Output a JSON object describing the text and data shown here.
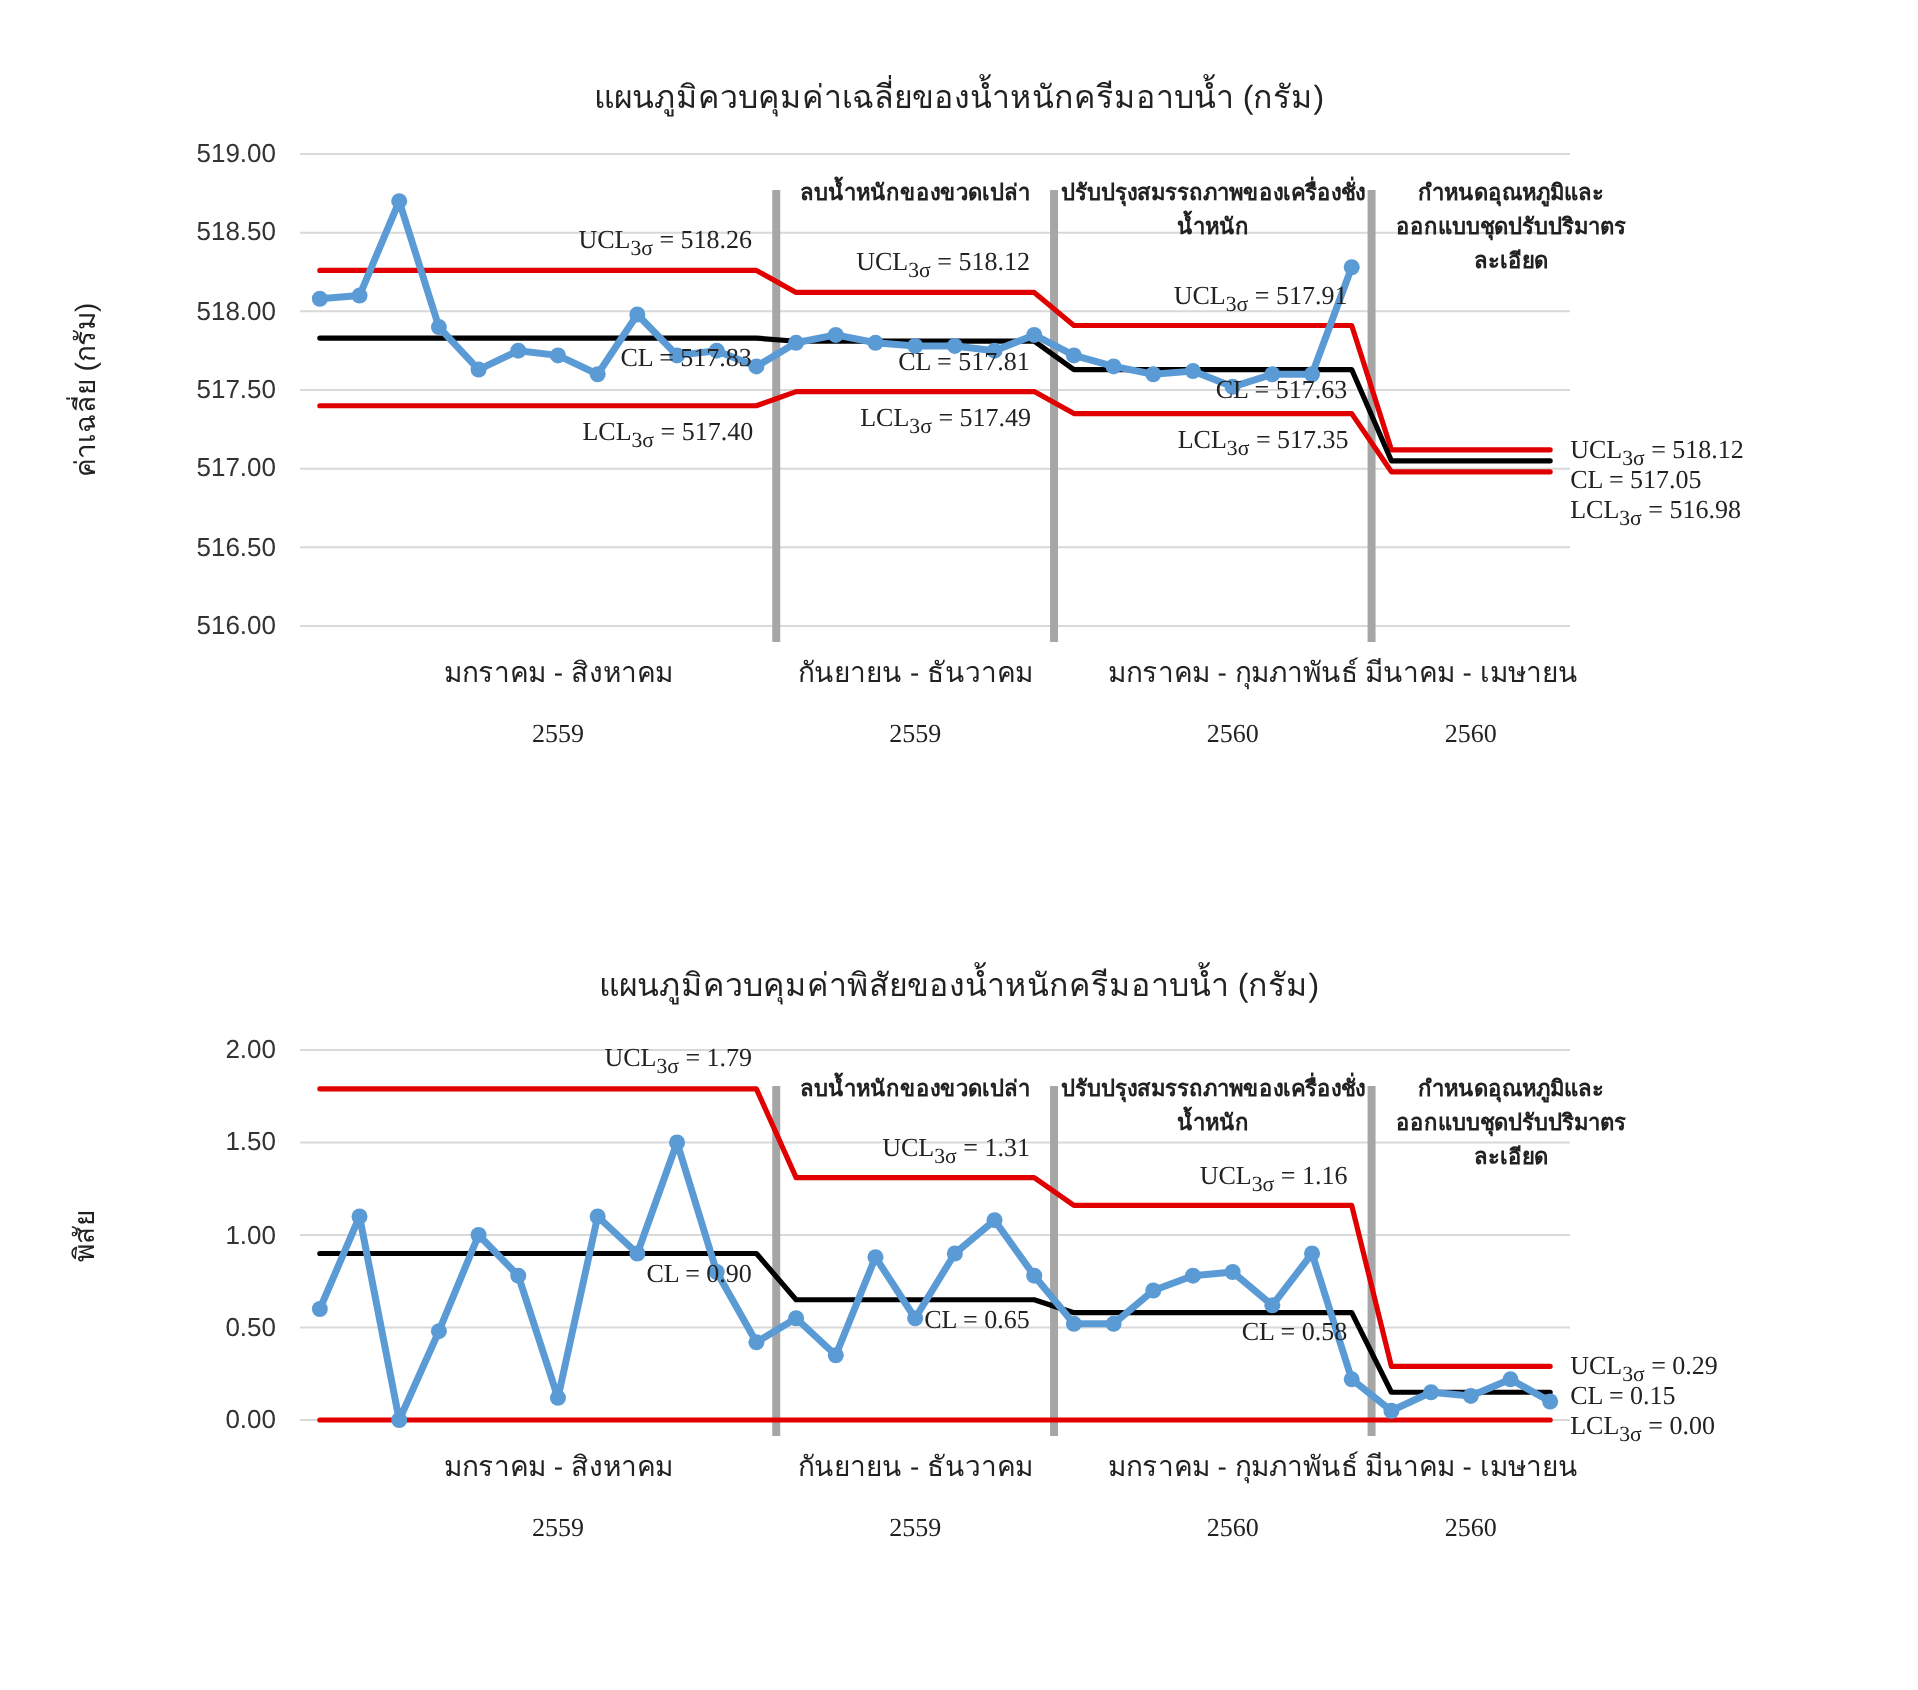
{
  "chart_data": [
    {
      "type": "line",
      "title": "แผนภูมิควบคุมค่าเฉลี่ยของน้ำหนักครีมอาบน้ำ (กรัม)",
      "ylabel": "ค่าเฉลี่ย (กรัม)",
      "categories": [
        null,
        null,
        null,
        null,
        null,
        null,
        "มกราคม - สิงหาคม 2559",
        null,
        null,
        null,
        null,
        null,
        null,
        null,
        null,
        "กันยายน - ธันวาคม 2559",
        null,
        null,
        null,
        null,
        null,
        null,
        null,
        "มกราคม - กุมภาพันธ์ 2560",
        null,
        null,
        null,
        null,
        null,
        "มีนาคม - เมษายน 2560",
        null,
        null
      ],
      "series": [
        {
          "color": "#5b9bd5",
          "marker": "circle",
          "values": [
            518.08,
            518.1,
            518.7,
            517.9,
            517.63,
            517.75,
            517.72,
            517.6,
            517.98,
            517.72,
            517.75,
            517.65,
            517.8,
            517.85,
            517.8,
            517.78,
            517.78,
            517.75,
            517.85,
            517.72,
            517.65,
            517.6,
            517.62,
            517.52,
            517.6,
            517.6,
            518.28,
            null,
            null,
            null,
            null,
            null
          ]
        },
        {
          "color": "#e00000",
          "marker": "none",
          "values": [
            518.26,
            518.26,
            518.26,
            518.26,
            518.26,
            518.26,
            518.26,
            518.26,
            518.26,
            518.26,
            518.26,
            518.26,
            518.12,
            518.12,
            518.12,
            518.12,
            518.12,
            518.12,
            518.12,
            517.91,
            517.91,
            517.91,
            517.91,
            517.91,
            517.91,
            517.91,
            517.91,
            517.12,
            517.12,
            517.12,
            517.12,
            517.12
          ]
        },
        {
          "color": "#000000",
          "marker": "none",
          "values": [
            517.83,
            517.83,
            517.83,
            517.83,
            517.83,
            517.83,
            517.83,
            517.83,
            517.83,
            517.83,
            517.83,
            517.83,
            517.81,
            517.81,
            517.81,
            517.81,
            517.81,
            517.81,
            517.81,
            517.63,
            517.63,
            517.63,
            517.63,
            517.63,
            517.63,
            517.63,
            517.63,
            517.05,
            517.05,
            517.05,
            517.05,
            517.05
          ]
        },
        {
          "color": "#e00000",
          "marker": "none",
          "values": [
            517.4,
            517.4,
            517.4,
            517.4,
            517.4,
            517.4,
            517.4,
            517.4,
            517.4,
            517.4,
            517.4,
            517.4,
            517.49,
            517.49,
            517.49,
            517.49,
            517.49,
            517.49,
            517.49,
            517.35,
            517.35,
            517.35,
            517.35,
            517.35,
            517.35,
            517.35,
            517.35,
            516.98,
            516.98,
            516.98,
            516.98,
            516.98
          ]
        }
      ],
      "ylim": [
        516,
        519
      ],
      "yticks": [
        {
          "value": 516,
          "label": "516.00"
        },
        {
          "value": 516.5,
          "label": "516.50"
        },
        {
          "value": 517,
          "label": "517.00"
        },
        {
          "value": 517.5,
          "label": "517.50"
        },
        {
          "value": 518,
          "label": "518.00"
        },
        {
          "value": 518.5,
          "label": "518.50"
        },
        {
          "value": 519,
          "label": "519.00"
        }
      ],
      "grid": "y",
      "annotations": [
        "ลบน้ำหนักของขวดเปล่า",
        "ปรับปรุงสมรรถภาพของเครื่องชั่งน้ำหนัก",
        "กำหนดอุณหภูมิและออกแบบชุดปรับปริมาตรละเอียด",
        {
          "text": "UCL$_{3σ}$ = 518.26",
          "y": 518.26
        },
        {
          "text": "CL = 517.83",
          "y": 517.83
        },
        {
          "text": "LCL$_{3σ}$ = 517.40",
          "y": 517.4
        },
        {
          "text": "UCL$_{3σ}$ = 518.12",
          "y": 518.12
        },
        {
          "text": "CL = 517.81",
          "y": 517.81
        },
        {
          "text": "LCL$_{3σ}$ = 517.49",
          "y": 517.49
        },
        {
          "text": "UCL$_{3σ}$ = 517.91",
          "y": 517.91
        },
        {
          "text": "CL = 517.63",
          "y": 517.63
        },
        {
          "text": "LCL$_{3σ}$ = 517.35",
          "y": 517.35
        },
        "UCL$_{3σ}$ = 518.12",
        "CL = 517.05",
        "LCL$_{3σ}$ = 516.98"
      ]
    },
    {
      "type": "line",
      "title": "แผนภูมิควบคุมค่าพิสัยของน้ำหนักครีมอาบน้ำ (กรัม)",
      "ylabel": "พิสัย",
      "categories": [
        null,
        null,
        null,
        null,
        null,
        null,
        "มกราคม - สิงหาคม 2559",
        null,
        null,
        null,
        null,
        null,
        null,
        null,
        null,
        "กันยายน - ธันวาคม 2559",
        null,
        null,
        null,
        null,
        null,
        null,
        null,
        "มกราคม - กุมภาพันธ์ 2560",
        null,
        null,
        null,
        null,
        null,
        "มีนาคม - เมษายน 2560",
        null,
        null
      ],
      "series": [
        {
          "color": "#5b9bd5",
          "marker": "circle",
          "values": [
            0.6,
            1.1,
            0.0,
            0.48,
            1.0,
            0.78,
            0.12,
            1.1,
            0.9,
            1.5,
            0.8,
            0.42,
            0.55,
            0.35,
            0.88,
            0.55,
            0.9,
            1.08,
            0.78,
            0.52,
            0.52,
            0.7,
            0.78,
            0.8,
            0.62,
            0.9,
            0.22,
            0.05,
            0.15,
            0.13,
            0.22,
            0.1
          ]
        },
        {
          "color": "#e00000",
          "marker": "none",
          "values": [
            1.79,
            1.79,
            1.79,
            1.79,
            1.79,
            1.79,
            1.79,
            1.79,
            1.79,
            1.79,
            1.79,
            1.79,
            1.31,
            1.31,
            1.31,
            1.31,
            1.31,
            1.31,
            1.31,
            1.16,
            1.16,
            1.16,
            1.16,
            1.16,
            1.16,
            1.16,
            1.16,
            0.29,
            0.29,
            0.29,
            0.29,
            0.29
          ]
        },
        {
          "color": "#000000",
          "marker": "none",
          "values": [
            0.9,
            0.9,
            0.9,
            0.9,
            0.9,
            0.9,
            0.9,
            0.9,
            0.9,
            0.9,
            0.9,
            0.9,
            0.65,
            0.65,
            0.65,
            0.65,
            0.65,
            0.65,
            0.65,
            0.58,
            0.58,
            0.58,
            0.58,
            0.58,
            0.58,
            0.58,
            0.58,
            0.15,
            0.15,
            0.15,
            0.15,
            0.15
          ]
        },
        {
          "color": "#e00000",
          "marker": "none",
          "values": [
            0,
            0,
            0,
            0,
            0,
            0,
            0,
            0,
            0,
            0,
            0,
            0,
            0,
            0,
            0,
            0,
            0,
            0,
            0,
            0,
            0,
            0,
            0,
            0,
            0,
            0,
            0,
            0,
            0,
            0,
            0,
            0
          ]
        }
      ],
      "ylim": [
        0,
        2
      ],
      "yticks": [
        {
          "value": 0,
          "label": "0.00"
        },
        {
          "value": 0.5,
          "label": "0.50"
        },
        {
          "value": 1,
          "label": "1.00"
        },
        {
          "value": 1.5,
          "label": "1.50"
        },
        {
          "value": 2,
          "label": "2.00"
        }
      ],
      "grid": "y",
      "annotations": [
        "ลบน้ำหนักของขวดเปล่า",
        "ปรับปรุงสมรรถภาพของเครื่องชั่งน้ำหนัก",
        "กำหนดอุณหภูมิและออกแบบชุดปรับปริมาตรละเอียด",
        {
          "text": "UCL$_{3σ}$ = 1.79",
          "y": 1.79
        },
        {
          "text": "CL = 0.90",
          "y": 0.9
        },
        {
          "text": "UCL$_{3σ}$ = 1.31",
          "y": 1.31
        },
        {
          "text": "CL = 0.65",
          "y": 0.65
        },
        {
          "text": "UCL$_{3σ}$ = 1.16",
          "y": 1.16
        },
        {
          "text": "CL = 0.58",
          "y": 0.58
        },
        "UCL$_{3σ}$ = 0.29",
        "CL = 0.15",
        "LCL$_{3σ}$ = 0.00"
      ]
    }
  ]
}
